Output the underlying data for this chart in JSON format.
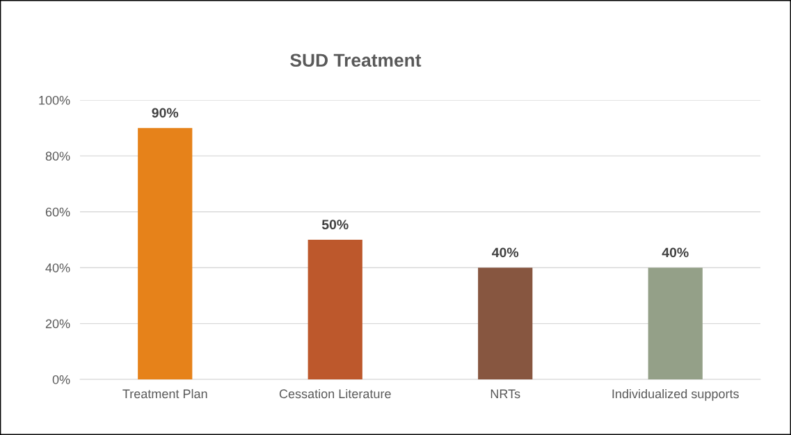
{
  "chart_data": {
    "type": "bar",
    "title": "SUD Treatment",
    "categories": [
      "Treatment Plan",
      "Cessation Literature",
      "NRTs",
      "Individualized supports"
    ],
    "values": [
      90,
      50,
      40,
      40
    ],
    "colors": [
      "#e6821a",
      "#bd582c",
      "#875640",
      "#94a088"
    ],
    "value_labels": [
      "90%",
      "50%",
      "40%",
      "40%"
    ],
    "ylim": [
      0,
      100
    ],
    "yticks": [
      {
        "value": 0,
        "label": "0%"
      },
      {
        "value": 20,
        "label": "20%"
      },
      {
        "value": 40,
        "label": "40%"
      },
      {
        "value": 60,
        "label": "60%"
      },
      {
        "value": 80,
        "label": "80%"
      },
      {
        "value": 100,
        "label": "100%"
      }
    ],
    "grid": "y",
    "legend": false
  }
}
